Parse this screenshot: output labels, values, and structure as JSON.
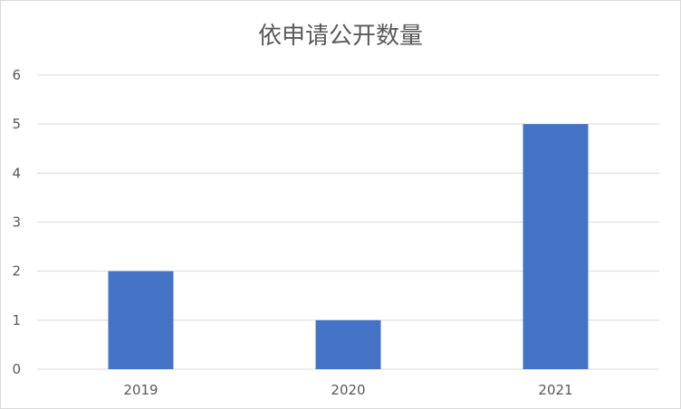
{
  "chart_data": {
    "type": "bar",
    "title": "依申请公开数量",
    "categories": [
      "2019",
      "2020",
      "2021"
    ],
    "values": [
      2,
      1,
      5
    ],
    "ylim": [
      0,
      6
    ],
    "yticks": [
      0,
      1,
      2,
      3,
      4,
      5,
      6
    ],
    "grid": true,
    "bar_color": "#4472C4",
    "xlabel": "",
    "ylabel": ""
  }
}
